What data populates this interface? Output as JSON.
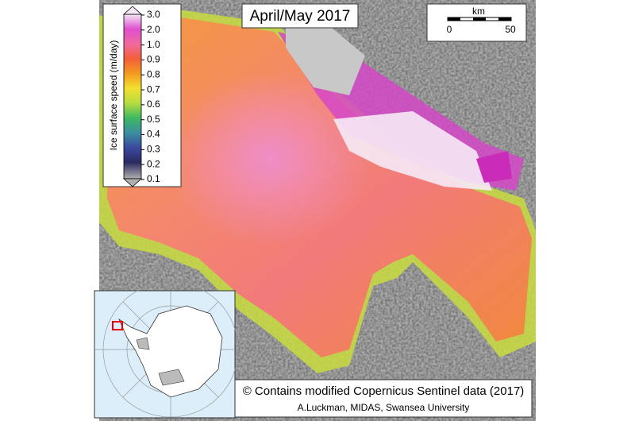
{
  "title": "April/May 2017",
  "scale_bar": {
    "unit": "km",
    "labels": [
      "0",
      "50"
    ]
  },
  "colorbar": {
    "label": "Ice surface speed (m/day)",
    "ticks": [
      "3.0",
      "2.0",
      "1.0",
      "0.9",
      "0.8",
      "0.7",
      "0.6",
      "0.5",
      "0.4",
      "0.3",
      "0.2",
      "0.1"
    ]
  },
  "credits": [
    "© Contains modified Copernicus Sentinel data (2017)",
    "A.Luckman, MIDAS, Swansea University"
  ]
}
